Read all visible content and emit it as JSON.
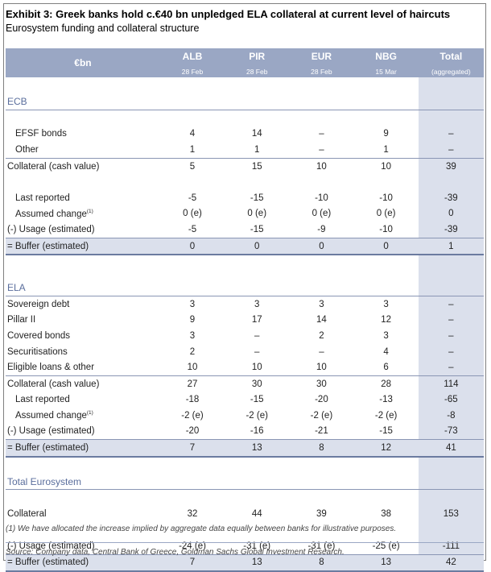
{
  "title": "Exhibit 3: Greek banks hold c.€40 bn unpledged ELA collateral at current level of haircuts",
  "subtitle": "Eurosystem funding and collateral structure",
  "header": {
    "unit": "€bn",
    "columns": [
      {
        "name": "ALB",
        "sub": "28 Feb"
      },
      {
        "name": "PIR",
        "sub": "28 Feb"
      },
      {
        "name": "EUR",
        "sub": "28 Feb"
      },
      {
        "name": "NBG",
        "sub": "15 Mar"
      },
      {
        "name": "Total",
        "sub": "(aggregated)"
      }
    ]
  },
  "ecb": {
    "title": "ECB",
    "efsf": {
      "label": "EFSF bonds",
      "v": [
        "4",
        "14",
        "–",
        "9",
        "–"
      ]
    },
    "other": {
      "label": "Other",
      "v": [
        "1",
        "1",
        "–",
        "1",
        "–"
      ]
    },
    "collateral": {
      "label": "Collateral (cash value)",
      "v": [
        "5",
        "15",
        "10",
        "10",
        "39"
      ]
    },
    "last": {
      "label": "Last reported",
      "v": [
        "-5",
        "-15",
        "-10",
        "-10",
        "-39"
      ]
    },
    "assumed": {
      "label": "Assumed change",
      "sup": "(1)",
      "v": [
        "0 (e)",
        "0 (e)",
        "0 (e)",
        "0 (e)",
        "0"
      ]
    },
    "usage": {
      "label": "(-) Usage (estimated)",
      "v": [
        "-5",
        "-15",
        "-9",
        "-10",
        "-39"
      ]
    },
    "buffer": {
      "label": "= Buffer (estimated)",
      "v": [
        "0",
        "0",
        "0",
        "0",
        "1"
      ]
    }
  },
  "ela": {
    "title": "ELA",
    "sovereign": {
      "label": "Sovereign debt",
      "v": [
        "3",
        "3",
        "3",
        "3",
        "–"
      ]
    },
    "pillar": {
      "label": "Pillar II",
      "v": [
        "9",
        "17",
        "14",
        "12",
        "–"
      ]
    },
    "covered": {
      "label": "Covered bonds",
      "v": [
        "3",
        "–",
        "2",
        "3",
        "–"
      ]
    },
    "secur": {
      "label": "Securitisations",
      "v": [
        "2",
        "–",
        "–",
        "4",
        "–"
      ]
    },
    "eligible": {
      "label": "Eligible loans & other",
      "v": [
        "10",
        "10",
        "10",
        "6",
        "–"
      ]
    },
    "collateral": {
      "label": "Collateral (cash value)",
      "v": [
        "27",
        "30",
        "30",
        "28",
        "114"
      ]
    },
    "last": {
      "label": "Last reported",
      "v": [
        "-18",
        "-15",
        "-20",
        "-13",
        "-65"
      ]
    },
    "assumed": {
      "label": "Assumed change",
      "sup": "(1)",
      "v": [
        "-2 (e)",
        "-2 (e)",
        "-2 (e)",
        "-2 (e)",
        "-8"
      ]
    },
    "usage": {
      "label": "(-) Usage (estimated)",
      "v": [
        "-20",
        "-16",
        "-21",
        "-15",
        "-73"
      ]
    },
    "buffer": {
      "label": "= Buffer (estimated)",
      "v": [
        "7",
        "13",
        "8",
        "12",
        "41"
      ]
    }
  },
  "total": {
    "title": "Total Eurosystem",
    "collateral": {
      "label": "Collateral",
      "v": [
        "32",
        "44",
        "39",
        "38",
        "153"
      ]
    },
    "usage": {
      "label": "(-) Usage (estimated)",
      "v": [
        "-24 (e)",
        "-31 (e)",
        "-31 (e)",
        "-25 (e)",
        "-111"
      ]
    },
    "buffer": {
      "label": "= Buffer (estimated)",
      "v": [
        "7",
        "13",
        "8",
        "13",
        "42"
      ]
    }
  },
  "footnote": "(1) We have allocated the increase implied by aggregate data equally between banks for illustrative purposes.",
  "source": "Source: Company data, Central Bank of Greece, Goldman Sachs Global Investment Research."
}
